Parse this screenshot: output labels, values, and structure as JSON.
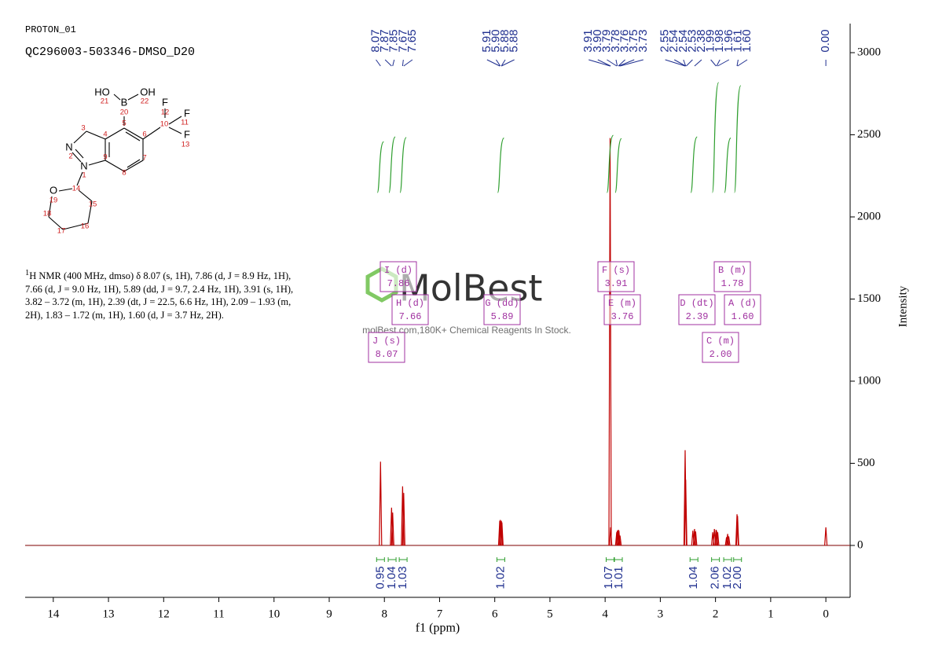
{
  "chart_data": {
    "type": "nmr",
    "header": "PROTON_01",
    "title": "QC296003-503346-DMSO_D20",
    "xlabel": "f1 (ppm)",
    "ylabel": "Intensity",
    "xlim": [
      14.51,
      -0.44
    ],
    "ylim": [
      -316,
      3177
    ],
    "xticks": [
      14,
      13,
      12,
      11,
      10,
      9,
      8,
      7,
      6,
      5,
      4,
      3,
      2,
      1,
      0
    ],
    "yticks": [
      0,
      500,
      1000,
      1500,
      2000,
      2500,
      3000
    ],
    "color": "#c00000",
    "x": [
      8.07,
      7.87,
      7.85,
      7.67,
      7.65,
      5.91,
      5.9,
      5.88,
      5.87,
      3.91,
      3.9,
      3.79,
      3.78,
      3.76,
      3.75,
      3.73,
      2.55,
      2.54,
      2.41,
      2.38,
      2.36,
      2.05,
      2.02,
      1.99,
      1.98,
      1.96,
      1.8,
      1.78,
      1.76,
      1.61,
      1.6,
      0.0
    ],
    "values": [
      510,
      230,
      200,
      360,
      320,
      150,
      155,
      150,
      140,
      2480,
      110,
      80,
      90,
      95,
      90,
      60,
      580,
      400,
      90,
      100,
      85,
      80,
      100,
      95,
      90,
      80,
      50,
      70,
      55,
      190,
      180,
      110
    ],
    "peak_labels": [
      "8.07",
      "7.87",
      "7.85",
      "7.67",
      "7.65",
      "5.91",
      "5.90",
      "5.88",
      "5.88",
      "3.91",
      "3.90",
      "3.79",
      "3.78",
      "3.76",
      "3.75",
      "3.73",
      "2.55",
      "2.54",
      "2.54",
      "2.53",
      "2.38",
      "1.99",
      "1.98",
      "1.96",
      "1.61",
      "1.60",
      "0.00"
    ],
    "peak_label_color": "#1f2f8f",
    "integrals": {
      "x": [
        8.07,
        7.86,
        7.66,
        5.89,
        3.91,
        3.76,
        2.39,
        2.0,
        1.78,
        1.6
      ],
      "values": [
        0.95,
        1.04,
        1.03,
        1.02,
        1.07,
        1.01,
        1.04,
        2.06,
        1.02,
        2
      ],
      "value_labels": [
        "0.95",
        "1.04",
        "1.03",
        "1.02",
        "1.07",
        "1.01",
        "1.04",
        "2.06",
        "1.02",
        "2.00"
      ],
      "color": "#2e9e2e"
    },
    "multiplets": [
      {
        "name": "J (s)",
        "shift": "8.07"
      },
      {
        "name": "I (d)",
        "shift": "7.86"
      },
      {
        "name": "H (d)",
        "shift": "7.66"
      },
      {
        "name": "G (dd)",
        "shift": "5.89"
      },
      {
        "name": "F (s)",
        "shift": "3.91"
      },
      {
        "name": "E (m)",
        "shift": "3.76"
      },
      {
        "name": "D (dt)",
        "shift": "2.39"
      },
      {
        "name": "C (m)",
        "shift": "2.00"
      },
      {
        "name": "B (m)",
        "shift": "1.78"
      },
      {
        "name": "A (d)",
        "shift": "1.60"
      }
    ],
    "multiplet_color": "#a030a0"
  },
  "description": {
    "sup": "1",
    "text": "H NMR (400 MHz, dmso) δ 8.07 (s, 1H), 7.86 (d, J = 8.9 Hz, 1H), 7.66 (d, J = 9.0 Hz, 1H), 5.89 (dd, J = 9.7, 2.4 Hz, 1H), 3.91 (s, 1H), 3.82 – 3.72 (m, 1H), 2.39 (dt, J = 22.5, 6.6 Hz, 1H), 2.09 – 1.93 (m, 2H), 1.83 – 1.72 (m, 1H), 1.60 (d, J = 3.7 Hz, 2H)."
  },
  "watermark": {
    "brand": "MolBest",
    "tagline": "molBest.com,180K+ Chemical Reagents In Stock."
  },
  "structure": {
    "atoms": [
      "HO",
      "OH",
      "B",
      "F",
      "F",
      "F",
      "N",
      "N",
      "O"
    ],
    "numbers": [
      "21",
      "22",
      "20",
      "12",
      "11",
      "13",
      "10",
      "5",
      "4",
      "6",
      "3",
      "2",
      "9",
      "7",
      "8",
      "1",
      "14",
      "19",
      "15",
      "18",
      "16",
      "17"
    ]
  }
}
